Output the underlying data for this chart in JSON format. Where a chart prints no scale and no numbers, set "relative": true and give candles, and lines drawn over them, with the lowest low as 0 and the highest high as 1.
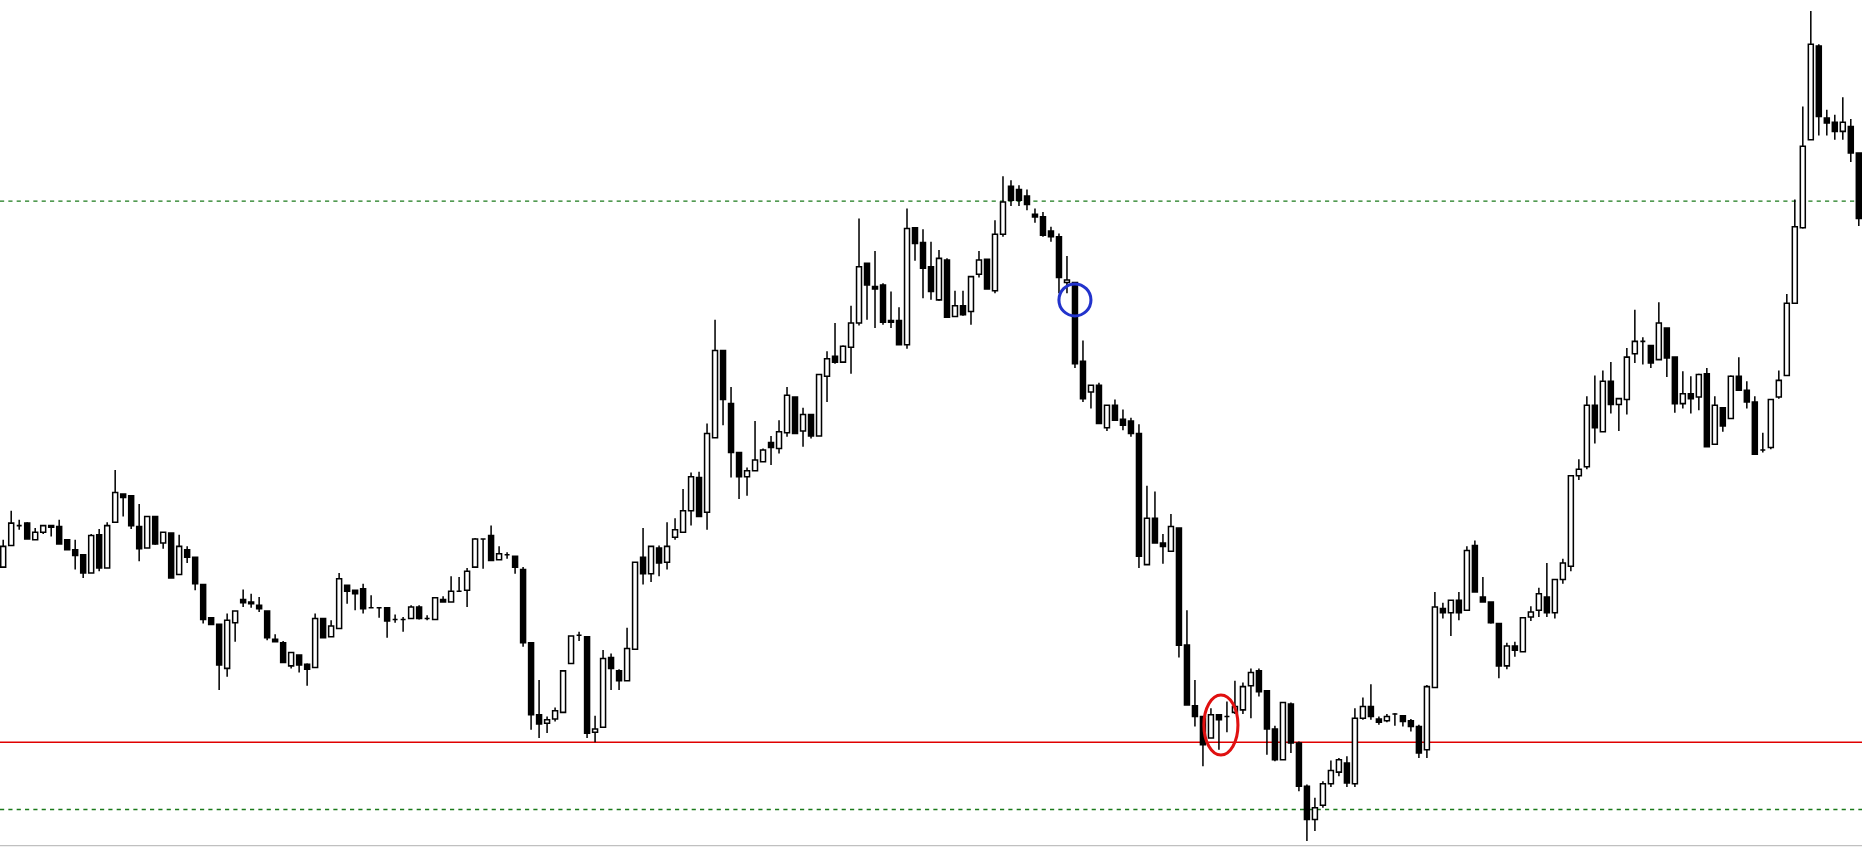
{
  "chart_data": {
    "type": "candlestick",
    "relative": true,
    "categories": [
      null,
      null,
      null,
      null,
      null,
      null,
      null,
      null,
      null,
      null,
      null,
      null,
      null,
      null,
      null,
      null,
      null,
      null,
      null,
      null,
      null,
      null,
      null,
      null,
      null,
      null,
      null,
      null,
      null,
      null,
      null,
      null,
      null,
      null,
      null,
      null,
      null,
      null,
      null,
      null,
      null,
      null,
      null,
      null,
      null,
      null,
      null,
      null,
      null,
      null,
      null,
      null,
      null,
      null,
      null,
      null,
      null,
      null,
      null,
      null,
      null,
      null,
      null,
      null,
      null,
      null,
      null,
      null,
      null,
      null,
      null,
      null,
      null,
      null,
      null,
      null,
      null,
      null,
      null,
      null,
      null,
      null,
      null,
      null,
      null,
      null,
      null,
      null,
      null,
      null,
      null,
      null,
      null,
      null,
      null,
      null,
      null,
      null,
      null,
      null,
      null,
      null,
      null,
      null,
      null,
      null,
      null,
      null,
      null,
      null,
      null,
      null,
      null,
      null,
      null,
      null,
      null,
      null,
      null,
      null,
      null,
      null,
      null,
      null,
      null,
      null,
      null,
      null,
      null,
      null,
      null,
      null,
      null,
      null,
      null,
      null,
      null,
      null,
      null,
      null,
      null,
      null,
      null,
      null,
      null,
      null,
      null,
      null,
      null,
      null,
      null,
      null,
      null,
      null,
      null,
      null,
      null,
      null,
      null,
      null,
      null,
      null,
      null,
      null,
      null,
      null,
      null,
      null,
      null,
      null,
      null,
      null,
      null,
      null,
      null,
      null,
      null,
      null,
      null,
      null,
      null,
      null,
      null,
      null,
      null,
      null,
      null,
      null,
      null,
      null,
      null,
      null,
      null,
      null,
      null,
      null,
      null,
      null,
      null,
      null,
      null,
      null,
      null,
      null,
      null,
      null,
      null,
      null,
      null,
      null,
      null,
      null,
      null,
      null,
      null,
      null,
      null,
      null,
      null,
      null,
      null,
      null,
      null,
      null,
      null,
      null,
      null,
      null,
      null,
      null,
      null,
      null,
      null
    ],
    "ohlc": [
      [
        0.33,
        0.363,
        0.33,
        0.355
      ],
      [
        0.356,
        0.398,
        0.356,
        0.383
      ],
      [
        0.38,
        0.387,
        0.375,
        0.38
      ],
      [
        0.383,
        0.384,
        0.364,
        0.364
      ],
      [
        0.363,
        0.377,
        0.363,
        0.372
      ],
      [
        0.372,
        0.38,
        0.37,
        0.38
      ],
      [
        0.38,
        0.38,
        0.367,
        0.378
      ],
      [
        0.379,
        0.387,
        0.358,
        0.358
      ],
      [
        0.363,
        0.363,
        0.351,
        0.351
      ],
      [
        0.351,
        0.363,
        0.327,
        0.344
      ],
      [
        0.345,
        0.345,
        0.317,
        0.323
      ],
      [
        0.323,
        0.37,
        0.323,
        0.368
      ],
      [
        0.369,
        0.376,
        0.325,
        0.329
      ],
      [
        0.329,
        0.384,
        0.329,
        0.38
      ],
      [
        0.384,
        0.447,
        0.384,
        0.42
      ],
      [
        0.418,
        0.418,
        0.391,
        0.414
      ],
      [
        0.416,
        0.416,
        0.376,
        0.38
      ],
      [
        0.379,
        0.406,
        0.337,
        0.352
      ],
      [
        0.353,
        0.391,
        0.353,
        0.391
      ],
      [
        0.391,
        0.391,
        0.357,
        0.358
      ],
      [
        0.359,
        0.372,
        0.352,
        0.372
      ],
      [
        0.371,
        0.371,
        0.317,
        0.317
      ],
      [
        0.321,
        0.369,
        0.321,
        0.355
      ],
      [
        0.351,
        0.355,
        0.335,
        0.342
      ],
      [
        0.342,
        0.342,
        0.302,
        0.31
      ],
      [
        0.309,
        0.309,
        0.262,
        0.267
      ],
      [
        0.269,
        0.269,
        0.261,
        0.261
      ],
      [
        0.261,
        0.261,
        0.182,
        0.212
      ],
      [
        0.208,
        0.274,
        0.198,
        0.266
      ],
      [
        0.263,
        0.277,
        0.24,
        0.277
      ],
      [
        0.291,
        0.303,
        0.282,
        0.287
      ],
      [
        0.288,
        0.298,
        0.281,
        0.286
      ],
      [
        0.284,
        0.294,
        0.276,
        0.28
      ],
      [
        0.277,
        0.277,
        0.242,
        0.245
      ],
      [
        0.243,
        0.249,
        0.24,
        0.24
      ],
      [
        0.239,
        0.241,
        0.215,
        0.215
      ],
      [
        0.211,
        0.227,
        0.208,
        0.227
      ],
      [
        0.224,
        0.224,
        0.203,
        0.212
      ],
      [
        0.213,
        0.214,
        0.187,
        0.207
      ],
      [
        0.209,
        0.274,
        0.209,
        0.268
      ],
      [
        0.268,
        0.268,
        0.245,
        0.245
      ],
      [
        0.246,
        0.266,
        0.246,
        0.259
      ],
      [
        0.256,
        0.323,
        0.256,
        0.316
      ],
      [
        0.308,
        0.308,
        0.286,
        0.301
      ],
      [
        0.302,
        0.302,
        0.278,
        0.298
      ],
      [
        0.304,
        0.31,
        0.274,
        0.28
      ],
      [
        0.281,
        0.296,
        0.281,
        0.281
      ],
      [
        0.281,
        0.281,
        0.269,
        0.281
      ],
      [
        0.281,
        0.281,
        0.245,
        0.265
      ],
      [
        0.267,
        0.273,
        0.263,
        0.267
      ],
      [
        0.267,
        0.27,
        0.252,
        0.267
      ],
      [
        0.268,
        0.284,
        0.268,
        0.282
      ],
      [
        0.282,
        0.284,
        0.267,
        0.268
      ],
      [
        0.268,
        0.272,
        0.266,
        0.268
      ],
      [
        0.267,
        0.294,
        0.267,
        0.293
      ],
      [
        0.291,
        0.295,
        0.288,
        0.288
      ],
      [
        0.288,
        0.319,
        0.288,
        0.301
      ],
      [
        0.301,
        0.318,
        0.301,
        0.301
      ],
      [
        0.302,
        0.329,
        0.282,
        0.325
      ],
      [
        0.33,
        0.365,
        0.33,
        0.364
      ],
      [
        0.364,
        0.364,
        0.328,
        0.364
      ],
      [
        0.368,
        0.38,
        0.338,
        0.338
      ],
      [
        0.339,
        0.355,
        0.339,
        0.346
      ],
      [
        0.345,
        0.348,
        0.34,
        0.345
      ],
      [
        0.343,
        0.343,
        0.322,
        0.33
      ],
      [
        0.327,
        0.33,
        0.234,
        0.239
      ],
      [
        0.239,
        0.239,
        0.134,
        0.152
      ],
      [
        0.152,
        0.194,
        0.124,
        0.141
      ],
      [
        0.142,
        0.15,
        0.13,
        0.146
      ],
      [
        0.147,
        0.161,
        0.144,
        0.157
      ],
      [
        0.155,
        0.205,
        0.155,
        0.205
      ],
      [
        0.214,
        0.247,
        0.214,
        0.247
      ],
      [
        0.248,
        0.252,
        0.241,
        0.248
      ],
      [
        0.246,
        0.246,
        0.124,
        0.13
      ],
      [
        0.131,
        0.151,
        0.119,
        0.135
      ],
      [
        0.137,
        0.23,
        0.137,
        0.22
      ],
      [
        0.221,
        0.226,
        0.182,
        0.208
      ],
      [
        0.205,
        0.207,
        0.182,
        0.193
      ],
      [
        0.193,
        0.257,
        0.193,
        0.232
      ],
      [
        0.231,
        0.336,
        0.231,
        0.336
      ],
      [
        0.342,
        0.377,
        0.309,
        0.322
      ],
      [
        0.322,
        0.355,
        0.312,
        0.355
      ],
      [
        0.353,
        0.356,
        0.319,
        0.335
      ],
      [
        0.336,
        0.384,
        0.327,
        0.355
      ],
      [
        0.366,
        0.389,
        0.363,
        0.375
      ],
      [
        0.372,
        0.424,
        0.371,
        0.398
      ],
      [
        0.398,
        0.444,
        0.38,
        0.439
      ],
      [
        0.438,
        0.445,
        0.391,
        0.391
      ],
      [
        0.396,
        0.503,
        0.375,
        0.491
      ],
      [
        0.486,
        0.628,
        0.486,
        0.591
      ],
      [
        0.591,
        0.591,
        0.501,
        0.532
      ],
      [
        0.527,
        0.547,
        0.438,
        0.468
      ],
      [
        0.468,
        0.468,
        0.412,
        0.439
      ],
      [
        0.439,
        0.45,
        0.416,
        0.446
      ],
      [
        0.446,
        0.506,
        0.446,
        0.459
      ],
      [
        0.457,
        0.473,
        0.457,
        0.471
      ],
      [
        0.48,
        0.488,
        0.453,
        0.474
      ],
      [
        0.473,
        0.507,
        0.467,
        0.493
      ],
      [
        0.492,
        0.547,
        0.487,
        0.537
      ],
      [
        0.535,
        0.535,
        0.491,
        0.491
      ],
      [
        0.494,
        0.522,
        0.475,
        0.514
      ],
      [
        0.514,
        0.514,
        0.485,
        0.488
      ],
      [
        0.488,
        0.562,
        0.488,
        0.562
      ],
      [
        0.56,
        0.59,
        0.529,
        0.581
      ],
      [
        0.584,
        0.624,
        0.575,
        0.577
      ],
      [
        0.577,
        0.597,
        0.577,
        0.596
      ],
      [
        0.595,
        0.645,
        0.563,
        0.624
      ],
      [
        0.624,
        0.75,
        0.621,
        0.692
      ],
      [
        0.696,
        0.696,
        0.628,
        0.67
      ],
      [
        0.668,
        0.711,
        0.618,
        0.665
      ],
      [
        0.67,
        0.672,
        0.622,
        0.625
      ],
      [
        0.625,
        0.662,
        0.618,
        0.627
      ],
      [
        0.627,
        0.643,
        0.598,
        0.598
      ],
      [
        0.598,
        0.762,
        0.593,
        0.738
      ],
      [
        0.739,
        0.739,
        0.699,
        0.72
      ],
      [
        0.721,
        0.737,
        0.654,
        0.69
      ],
      [
        0.692,
        0.722,
        0.652,
        0.662
      ],
      [
        0.652,
        0.712,
        0.651,
        0.702
      ],
      [
        0.7,
        0.702,
        0.631,
        0.631
      ],
      [
        0.632,
        0.663,
        0.632,
        0.645
      ],
      [
        0.645,
        0.663,
        0.633,
        0.634
      ],
      [
        0.638,
        0.68,
        0.622,
        0.68
      ],
      [
        0.683,
        0.711,
        0.679,
        0.7
      ],
      [
        0.701,
        0.701,
        0.665,
        0.665
      ],
      [
        0.663,
        0.748,
        0.66,
        0.731
      ],
      [
        0.731,
        0.801,
        0.728,
        0.77
      ],
      [
        0.789,
        0.796,
        0.765,
        0.772
      ],
      [
        0.785,
        0.79,
        0.765,
        0.772
      ],
      [
        0.777,
        0.785,
        0.76,
        0.767
      ],
      [
        0.755,
        0.762,
        0.745,
        0.752
      ],
      [
        0.752,
        0.758,
        0.728,
        0.73
      ],
      [
        0.735,
        0.74,
        0.722,
        0.728
      ],
      [
        0.728,
        0.732,
        0.66,
        0.679
      ],
      [
        0.673,
        0.705,
        0.66,
        0.676
      ],
      [
        0.673,
        0.673,
        0.57,
        0.575
      ],
      [
        0.578,
        0.603,
        0.529,
        0.533
      ],
      [
        0.541,
        0.549,
        0.521,
        0.549
      ],
      [
        0.549,
        0.552,
        0.503,
        0.503
      ],
      [
        0.498,
        0.525,
        0.494,
        0.525
      ],
      [
        0.525,
        0.532,
        0.507,
        0.507
      ],
      [
        0.508,
        0.52,
        0.495,
        0.501
      ],
      [
        0.506,
        0.51,
        0.487,
        0.491
      ],
      [
        0.491,
        0.502,
        0.329,
        0.343
      ],
      [
        0.333,
        0.428,
        0.333,
        0.389
      ],
      [
        0.389,
        0.421,
        0.359,
        0.359
      ],
      [
        0.359,
        0.37,
        0.334,
        0.355
      ],
      [
        0.349,
        0.394,
        0.349,
        0.379
      ],
      [
        0.377,
        0.377,
        0.221,
        0.236
      ],
      [
        0.236,
        0.278,
        0.164,
        0.164
      ],
      [
        0.163,
        0.194,
        0.138,
        0.15
      ],
      [
        0.15,
        0.15,
        0.09,
        0.116
      ],
      [
        0.124,
        0.16,
        0.124,
        0.152
      ],
      [
        0.152,
        0.152,
        0.11,
        0.146
      ],
      [
        0.15,
        0.168,
        0.131,
        0.15
      ],
      [
        0.155,
        0.193,
        0.153,
        0.162
      ],
      [
        0.158,
        0.191,
        0.153,
        0.186
      ],
      [
        0.187,
        0.208,
        0.148,
        0.203
      ],
      [
        0.205,
        0.208,
        0.174,
        0.18
      ],
      [
        0.181,
        0.181,
        0.104,
        0.135
      ],
      [
        0.135,
        0.139,
        0.096,
        0.098
      ],
      [
        0.098,
        0.167,
        0.098,
        0.167
      ],
      [
        0.165,
        0.167,
        0.106,
        0.118
      ],
      [
        0.118,
        0.12,
        0.06,
        0.066
      ],
      [
        0.066,
        0.068,
        0,
        0.026
      ],
      [
        0.026,
        0.052,
        0.012,
        0.04
      ],
      [
        0.043,
        0.072,
        0.04,
        0.069
      ],
      [
        0.069,
        0.097,
        0.065,
        0.085
      ],
      [
        0.083,
        0.1,
        0.078,
        0.098
      ],
      [
        0.094,
        0.102,
        0.065,
        0.07
      ],
      [
        0.069,
        0.16,
        0.065,
        0.148
      ],
      [
        0.148,
        0.173,
        0.146,
        0.162
      ],
      [
        0.162,
        0.189,
        0.146,
        0.15
      ],
      [
        0.147,
        0.15,
        0.14,
        0.143
      ],
      [
        0.145,
        0.153,
        0.143,
        0.15
      ],
      [
        0.153,
        0.154,
        0.139,
        0.153
      ],
      [
        0.151,
        0.151,
        0.138,
        0.144
      ],
      [
        0.145,
        0.147,
        0.132,
        0.138
      ],
      [
        0.138,
        0.14,
        0.1,
        0.106
      ],
      [
        0.11,
        0.188,
        0.1,
        0.186
      ],
      [
        0.185,
        0.3,
        0.185,
        0.282
      ],
      [
        0.28,
        0.287,
        0.268,
        0.275
      ],
      [
        0.275,
        0.29,
        0.247,
        0.29
      ],
      [
        0.29,
        0.3,
        0.266,
        0.275
      ],
      [
        0.278,
        0.355,
        0.278,
        0.35
      ],
      [
        0.356,
        0.362,
        0.3,
        0.3
      ],
      [
        0.294,
        0.318,
        0.288,
        0.288
      ],
      [
        0.288,
        0.288,
        0.262,
        0.263
      ],
      [
        0.262,
        0.262,
        0.196,
        0.211
      ],
      [
        0.211,
        0.239,
        0.207,
        0.235
      ],
      [
        0.235,
        0.24,
        0.222,
        0.23
      ],
      [
        0.228,
        0.269,
        0.228,
        0.269
      ],
      [
        0.27,
        0.283,
        0.265,
        0.276
      ],
      [
        0.278,
        0.305,
        0.27,
        0.298
      ],
      [
        0.294,
        0.335,
        0.27,
        0.275
      ],
      [
        0.275,
        0.315,
        0.268,
        0.315
      ],
      [
        0.315,
        0.34,
        0.31,
        0.335
      ],
      [
        0.331,
        0.44,
        0.325,
        0.44
      ],
      [
        0.44,
        0.46,
        0.435,
        0.448
      ],
      [
        0.451,
        0.536,
        0.448,
        0.525
      ],
      [
        0.525,
        0.561,
        0.479,
        0.498
      ],
      [
        0.493,
        0.567,
        0.493,
        0.554
      ],
      [
        0.554,
        0.577,
        0.515,
        0.526
      ],
      [
        0.526,
        0.533,
        0.494,
        0.533
      ],
      [
        0.532,
        0.594,
        0.514,
        0.583
      ],
      [
        0.587,
        0.64,
        0.576,
        0.602
      ],
      [
        0.602,
        0.607,
        0.574,
        0.602
      ],
      [
        0.597,
        0.597,
        0.57,
        0.576
      ],
      [
        0.58,
        0.649,
        0.58,
        0.624
      ],
      [
        0.618,
        0.618,
        0.559,
        0.582
      ],
      [
        0.583,
        0.583,
        0.516,
        0.527
      ],
      [
        0.527,
        0.566,
        0.521,
        0.539
      ],
      [
        0.539,
        0.56,
        0.515,
        0.533
      ],
      [
        0.535,
        0.563,
        0.519,
        0.562
      ],
      [
        0.563,
        0.57,
        0.475,
        0.475
      ],
      [
        0.478,
        0.536,
        0.478,
        0.525
      ],
      [
        0.522,
        0.522,
        0.493,
        0.5
      ],
      [
        0.509,
        0.561,
        0.509,
        0.56
      ],
      [
        0.56,
        0.583,
        0.543,
        0.543
      ],
      [
        0.543,
        0.554,
        0.521,
        0.529
      ],
      [
        0.529,
        0.536,
        0.466,
        0.466
      ],
      [
        0.471,
        0.492,
        0.468,
        0.471
      ],
      [
        0.474,
        0.532,
        0.472,
        0.532
      ],
      [
        0.535,
        0.567,
        0.533,
        0.555
      ],
      [
        0.561,
        0.659,
        0.561,
        0.648
      ],
      [
        0.648,
        0.773,
        0.648,
        0.74
      ],
      [
        0.739,
        0.885,
        0.738,
        0.837
      ],
      [
        0.845,
        1,
        0.845,
        0.96
      ],
      [
        0.958,
        0.96,
        0.85,
        0.873
      ],
      [
        0.871,
        0.881,
        0.85,
        0.865
      ],
      [
        0.866,
        0.875,
        0.845,
        0.855
      ],
      [
        0.855,
        0.896,
        0.845,
        0.866
      ],
      [
        0.861,
        0.87,
        0.818,
        0.829
      ],
      [
        0.829,
        0.829,
        0.741,
        0.75
      ]
    ],
    "ref_lines": [
      {
        "axis": "y",
        "value": 0.771,
        "color": "#1a7a1a",
        "line_style": "dashed"
      },
      {
        "axis": "y",
        "value": 0.119,
        "color": "#e00000",
        "line_style": "solid"
      },
      {
        "axis": "y",
        "value": 0.038,
        "color": "#1a7a1a",
        "line_style": "dashed"
      }
    ]
  }
}
